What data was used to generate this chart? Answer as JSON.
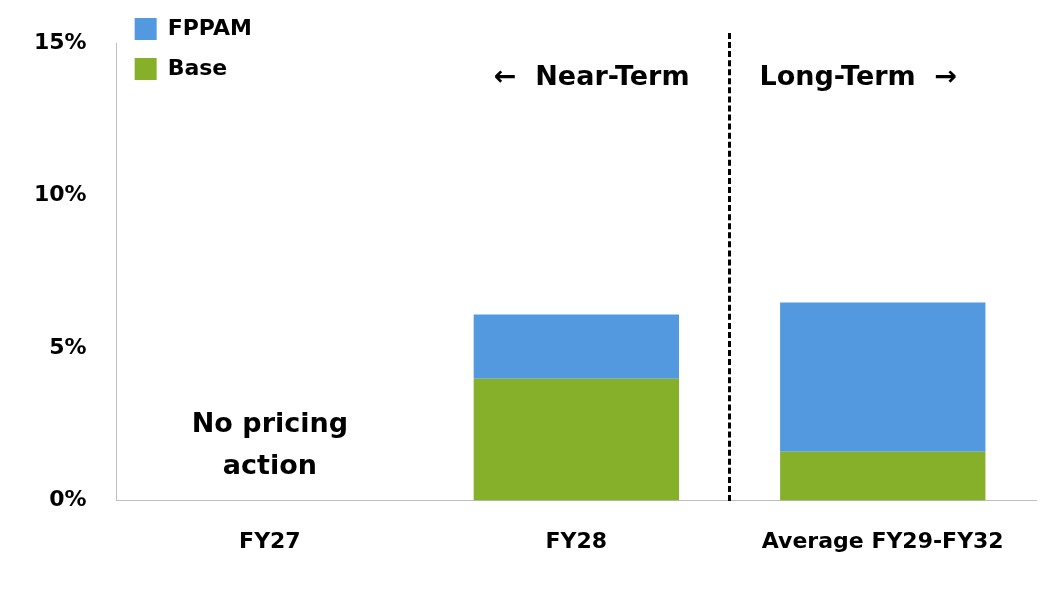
{
  "chart_data": {
    "type": "bar",
    "stacked": true,
    "categories": [
      "FY27",
      "FY28",
      "Average FY29-FY32"
    ],
    "series": [
      {
        "name": "Base",
        "color": "#86b02a",
        "values": [
          0,
          4.0,
          1.6
        ]
      },
      {
        "name": "FPPAM",
        "color": "#5299e0",
        "values": [
          0,
          2.1,
          4.9
        ]
      }
    ],
    "ylim": [
      0,
      15
    ],
    "yticks": [
      {
        "value": 0,
        "label": "0%"
      },
      {
        "value": 5,
        "label": "5%"
      },
      {
        "value": 10,
        "label": "10%"
      },
      {
        "value": 15,
        "label": "15%"
      }
    ],
    "grid": false,
    "legend": "top left",
    "annotations": [
      "No pricing action",
      "←  Near-Term",
      "Long-Term  →"
    ]
  }
}
